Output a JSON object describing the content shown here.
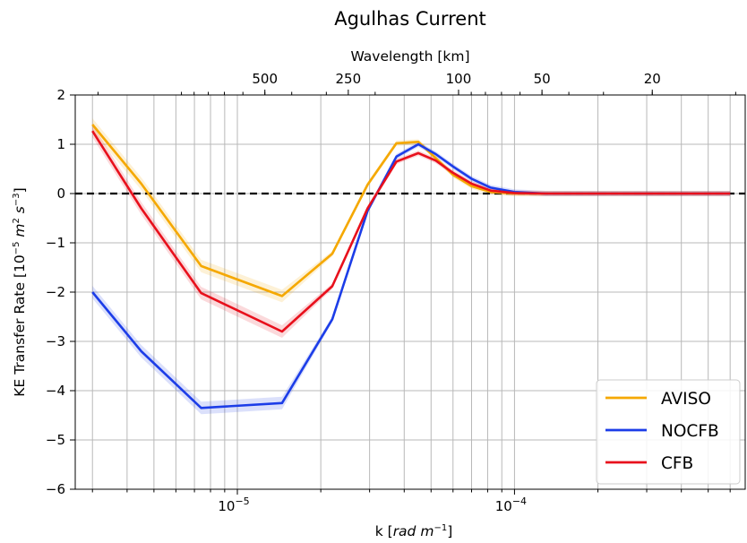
{
  "chart_data": {
    "type": "line",
    "title": "Agulhas Current",
    "xlabel_html": "k [<tspan font-style='italic'>rad m</tspan><tspan font-size='10' dy='-6'>−1</tspan><tspan dy='6'>]</tspan>",
    "xlabel": "k [rad m−1]",
    "ylabel": "KE Transfer Rate [10−5 m2 s−3]",
    "top_xlabel": "Wavelength [km]",
    "x_scale": "log",
    "xlim": [
      2.6e-06,
      0.00068
    ],
    "ylim": [
      -6,
      2
    ],
    "y_ticks": [
      "2",
      "1",
      "0",
      "−1",
      "−2",
      "−3",
      "−4",
      "−5",
      "−6"
    ],
    "x_tick_labels": [
      {
        "base": "10",
        "exp": "−5"
      },
      {
        "base": "10",
        "exp": "−4"
      }
    ],
    "top_ticks_km": [
      "500",
      "250",
      "100",
      "50",
      "20"
    ],
    "grid": true,
    "zero_line": {
      "y": 0,
      "style": "dashed",
      "color": "#000000"
    },
    "legend_position": "bottom-right",
    "series": [
      {
        "name": "AVISO",
        "color": "#f5a800",
        "x": [
          3e-06,
          4.5e-06,
          7.4e-06,
          1.45e-05,
          2.2e-05,
          2.95e-05,
          3.75e-05,
          4.5e-05,
          5.2e-05,
          6e-05,
          7e-05,
          8.2e-05,
          0.0001,
          0.00013,
          0.0002,
          0.00035,
          0.0006
        ],
        "y": [
          1.4,
          0.2,
          -1.47,
          -2.08,
          -1.22,
          0.18,
          1.02,
          1.05,
          0.72,
          0.38,
          0.15,
          0.03,
          0.0,
          0.0,
          0.0,
          0.0,
          0.0
        ]
      },
      {
        "name": "NOCFB",
        "color": "#1c3de8",
        "x": [
          3e-06,
          4.5e-06,
          7.4e-06,
          1.45e-05,
          2.2e-05,
          2.95e-05,
          3.75e-05,
          4.5e-05,
          5.2e-05,
          6e-05,
          7e-05,
          8.2e-05,
          0.0001,
          0.00013,
          0.0002,
          0.00035,
          0.0006
        ],
        "y": [
          -2.0,
          -3.2,
          -4.35,
          -4.25,
          -2.55,
          -0.35,
          0.75,
          1.0,
          0.8,
          0.55,
          0.3,
          0.12,
          0.03,
          0.0,
          0.0,
          0.0,
          0.0
        ]
      },
      {
        "name": "CFB",
        "color": "#e8101c",
        "x": [
          3e-06,
          4.5e-06,
          7.4e-06,
          1.45e-05,
          2.2e-05,
          2.95e-05,
          3.75e-05,
          4.5e-05,
          5.2e-05,
          6e-05,
          7e-05,
          8.2e-05,
          0.0001,
          0.00013,
          0.0002,
          0.00035,
          0.0006
        ],
        "y": [
          1.27,
          -0.3,
          -2.02,
          -2.8,
          -1.88,
          -0.3,
          0.65,
          0.82,
          0.67,
          0.42,
          0.2,
          0.06,
          0.01,
          0.0,
          0.0,
          0.0,
          0.0
        ]
      }
    ]
  }
}
